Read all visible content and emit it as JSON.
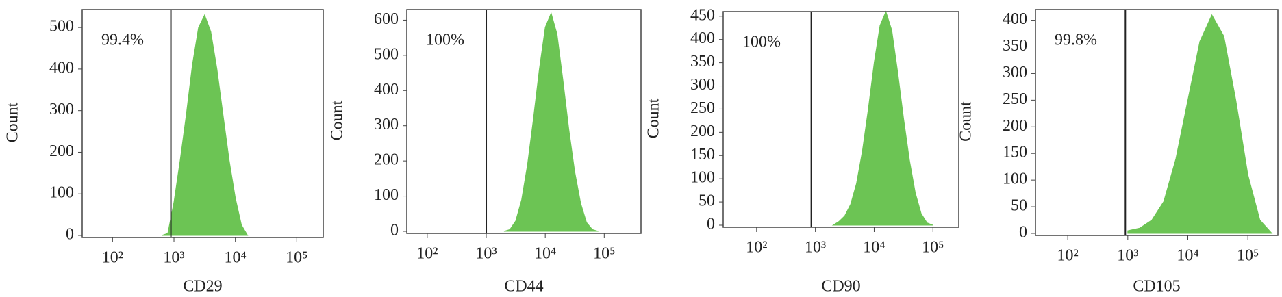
{
  "chart_data": [
    {
      "type": "area",
      "xlabel": "CD29",
      "ylabel": "Count",
      "annotation": "99.4%",
      "log_x": true,
      "gate": 891,
      "color": "#6cc454",
      "x": [
        631,
        794,
        1000,
        1259,
        1585,
        1995,
        2512,
        3162,
        3981,
        5012,
        6310,
        7943,
        10000,
        12589,
        15849
      ],
      "values": [
        0,
        5,
        80,
        180,
        290,
        410,
        500,
        530,
        490,
        400,
        290,
        180,
        90,
        25,
        0
      ],
      "xlim": [
        32,
        270000
      ],
      "xticks": [
        {
          "value": 100,
          "label": "10²"
        },
        {
          "value": 1000,
          "label": "10³"
        },
        {
          "value": 10000,
          "label": "10⁴"
        },
        {
          "value": 100000,
          "label": "10⁵"
        }
      ],
      "ylim": [
        0,
        543
      ],
      "yticks": [
        0,
        100,
        200,
        300,
        400,
        500
      ]
    },
    {
      "type": "area",
      "xlabel": "CD44",
      "ylabel": "Count",
      "annotation": "100%",
      "log_x": true,
      "gate": 1000,
      "color": "#6cc454",
      "x": [
        1995,
        2512,
        3162,
        3981,
        5012,
        6310,
        7943,
        10000,
        12589,
        15849,
        19953,
        25119,
        31623,
        39811,
        50119,
        63096,
        79433
      ],
      "values": [
        0,
        5,
        30,
        90,
        190,
        320,
        460,
        580,
        620,
        560,
        430,
        290,
        170,
        80,
        25,
        5,
        0
      ],
      "xlim": [
        45,
        420000
      ],
      "xticks": [
        {
          "value": 100,
          "label": "10²"
        },
        {
          "value": 1000,
          "label": "10³"
        },
        {
          "value": 10000,
          "label": "10⁴"
        },
        {
          "value": 100000,
          "label": "10⁵"
        }
      ],
      "ylim": [
        0,
        630
      ],
      "yticks": [
        0,
        100,
        200,
        300,
        400,
        500,
        600
      ]
    },
    {
      "type": "area",
      "xlabel": "CD90",
      "ylabel": "Count",
      "annotation": "100%",
      "log_x": true,
      "gate": 851,
      "color": "#6cc454",
      "x": [
        1995,
        2512,
        3162,
        3981,
        5012,
        6310,
        7943,
        10000,
        12589,
        15849,
        19953,
        25119,
        31623,
        39811,
        50119,
        63096,
        79433,
        100000
      ],
      "values": [
        0,
        8,
        20,
        45,
        90,
        160,
        250,
        350,
        430,
        460,
        420,
        330,
        230,
        140,
        70,
        25,
        5,
        0
      ],
      "xlim": [
        27,
        275000
      ],
      "xticks": [
        {
          "value": 100,
          "label": "10²"
        },
        {
          "value": 1000,
          "label": "10³"
        },
        {
          "value": 10000,
          "label": "10⁴"
        },
        {
          "value": 100000,
          "label": "10⁵"
        }
      ],
      "ylim": [
        0,
        460
      ],
      "yticks": [
        0,
        50,
        100,
        150,
        200,
        250,
        300,
        350,
        400,
        450
      ]
    },
    {
      "type": "area",
      "xlabel": "CD105",
      "ylabel": "Count",
      "annotation": "99.8%",
      "log_x": true,
      "gate": 912,
      "color": "#6cc454",
      "x": [
        1000,
        1585,
        2512,
        3981,
        6310,
        10000,
        15849,
        25119,
        39811,
        63096,
        100000,
        158489,
        251189
      ],
      "values": [
        5,
        10,
        25,
        60,
        140,
        250,
        360,
        410,
        370,
        250,
        110,
        25,
        0
      ],
      "xlim": [
        29,
        316000
      ],
      "xticks": [
        {
          "value": 100,
          "label": "10²"
        },
        {
          "value": 1000,
          "label": "10³"
        },
        {
          "value": 10000,
          "label": "10⁴"
        },
        {
          "value": 100000,
          "label": "10⁵"
        }
      ],
      "ylim": [
        0,
        420
      ],
      "yticks": [
        0,
        50,
        100,
        150,
        200,
        250,
        300,
        350,
        400
      ]
    }
  ]
}
